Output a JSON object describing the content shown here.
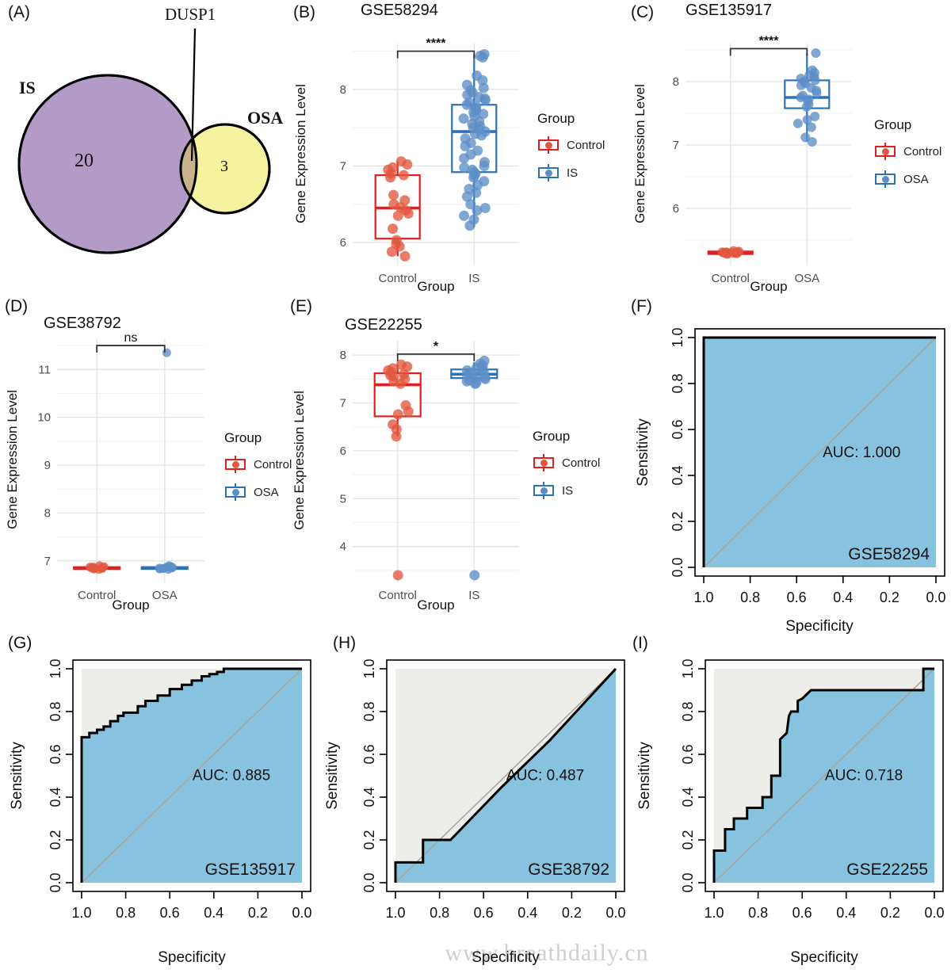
{
  "watermark": "www.breathdaily.cn",
  "colors": {
    "red_stroke": "#E02020",
    "red_point": "#E2573F",
    "blue_stroke": "#2C72B4",
    "blue_point": "#5C8EC6",
    "grid_major": "#E3E3E3",
    "grid_minor": "#F2F2F2",
    "axis_text": "#4D4D4D",
    "sig": "#333333",
    "roc_fill": "#87C3DF",
    "roc_area_bg": "#EDEDEA",
    "diagonal": "#AAA29A",
    "venn_is": "#B29BC6",
    "venn_osa": "#F5F3A0",
    "venn_overlap": "#C8B38C"
  },
  "chart_data": [
    {
      "id": "A",
      "type": "venn",
      "label": "(A)",
      "gene_label": "DUSP1",
      "sets": [
        {
          "name": "IS",
          "count": "20"
        },
        {
          "name": "OSA",
          "count": "3"
        }
      ],
      "overlap_gene": "DUSP1"
    },
    {
      "id": "B",
      "type": "box",
      "label": "(B)",
      "title": "GSE58294",
      "sig": "****",
      "sig_y": 8.5,
      "ylabel": "Gene Expression Level",
      "xlabel": "Group",
      "ylim": [
        5.7,
        8.6
      ],
      "yticks": [
        6,
        7,
        8
      ],
      "legend": {
        "title": "Group",
        "items": [
          {
            "label": "Control",
            "color": "red"
          },
          {
            "label": "IS",
            "color": "blue"
          }
        ]
      },
      "groups": [
        {
          "name": "Control",
          "color": "red",
          "box": {
            "lo": 5.82,
            "q1": 6.05,
            "med": 6.45,
            "q3": 6.88,
            "hi": 7.06
          },
          "points": [
            7.06,
            7.02,
            6.98,
            6.95,
            6.9,
            6.88,
            6.85,
            6.62,
            6.55,
            6.5,
            6.46,
            6.42,
            6.38,
            6.35,
            6.18,
            6.03,
            5.98,
            5.95,
            5.88,
            5.82
          ]
        },
        {
          "name": "IS",
          "color": "blue",
          "box": {
            "lo": 6.2,
            "q1": 6.92,
            "med": 7.45,
            "q3": 7.8,
            "hi": 8.45
          },
          "points": [
            8.46,
            8.44,
            8.42,
            8.18,
            8.12,
            8.06,
            8.02,
            7.99,
            7.96,
            7.93,
            7.9,
            7.88,
            7.86,
            7.83,
            7.8,
            7.78,
            7.76,
            7.73,
            7.7,
            7.68,
            7.65,
            7.62,
            7.58,
            7.55,
            7.52,
            7.5,
            7.48,
            7.45,
            7.42,
            7.4,
            7.36,
            7.3,
            7.26,
            7.2,
            7.15,
            7.1,
            7.05,
            7.0,
            6.98,
            6.95,
            6.92,
            6.9,
            6.88,
            6.85,
            6.8,
            6.75,
            6.7,
            6.65,
            6.6,
            6.5,
            6.45,
            6.42,
            6.35,
            6.3,
            6.22
          ]
        }
      ]
    },
    {
      "id": "C",
      "type": "box",
      "label": "(C)",
      "title": "GSE135917",
      "sig": "****",
      "sig_y": 8.52,
      "ylabel": "Gene Expression Level",
      "xlabel": "Group",
      "ylim": [
        5.1,
        8.6
      ],
      "yticks": [
        6,
        7,
        8
      ],
      "legend": {
        "title": "Group",
        "items": [
          {
            "label": "Control",
            "color": "red"
          },
          {
            "label": "OSA",
            "color": "blue"
          }
        ]
      },
      "groups": [
        {
          "name": "Control",
          "color": "red",
          "box": {
            "lo": 5.25,
            "q1": 5.28,
            "med": 5.3,
            "q3": 5.32,
            "hi": 5.35
          },
          "points": [
            5.33,
            5.32,
            5.31,
            5.31,
            5.3,
            5.3,
            5.3,
            5.29,
            5.29,
            5.28,
            5.3,
            5.31
          ]
        },
        {
          "name": "OSA",
          "color": "blue",
          "box": {
            "lo": 7.05,
            "q1": 7.58,
            "med": 7.75,
            "q3": 8.02,
            "hi": 8.45
          },
          "points": [
            8.45,
            8.18,
            8.14,
            8.1,
            8.08,
            8.05,
            8.02,
            8.0,
            7.97,
            7.94,
            7.9,
            7.86,
            7.82,
            7.78,
            7.75,
            7.72,
            7.68,
            7.64,
            7.6,
            7.45,
            7.4,
            7.34,
            7.28,
            7.12,
            7.05
          ]
        }
      ]
    },
    {
      "id": "D",
      "type": "box",
      "label": "(D)",
      "title": "GSE38792",
      "sig": "ns",
      "sig_y": 11.5,
      "ylabel": "Gene Expression Level",
      "xlabel": "Group",
      "ylim": [
        6.55,
        11.65
      ],
      "yticks": [
        7,
        8,
        9,
        10,
        11
      ],
      "legend": {
        "title": "Group",
        "items": [
          {
            "label": "Control",
            "color": "red"
          },
          {
            "label": "OSA",
            "color": "blue"
          }
        ]
      },
      "groups": [
        {
          "name": "Control",
          "color": "red",
          "box": {
            "lo": 6.8,
            "q1": 6.83,
            "med": 6.85,
            "q3": 6.87,
            "hi": 6.9
          },
          "points": [
            6.9,
            6.88,
            6.87,
            6.87,
            6.86,
            6.85,
            6.85,
            6.84,
            6.84,
            6.83,
            6.82,
            6.86
          ]
        },
        {
          "name": "OSA",
          "color": "blue",
          "box": {
            "lo": 6.8,
            "q1": 6.83,
            "med": 6.85,
            "q3": 6.87,
            "hi": 6.9
          },
          "points": [
            11.35,
            6.9,
            6.88,
            6.87,
            6.86,
            6.85,
            6.85,
            6.84,
            6.84,
            6.83,
            6.82,
            6.86
          ]
        }
      ]
    },
    {
      "id": "E",
      "type": "box",
      "label": "(E)",
      "title": "GSE22255",
      "sig": "*",
      "sig_y": 8.02,
      "ylabel": "Gene Expression Level",
      "xlabel": "Group",
      "ylim": [
        3.25,
        8.3
      ],
      "yticks": [
        4,
        5,
        6,
        7,
        8
      ],
      "legend": {
        "title": "Group",
        "items": [
          {
            "label": "Control",
            "color": "red"
          },
          {
            "label": "IS",
            "color": "blue"
          }
        ]
      },
      "groups": [
        {
          "name": "Control",
          "color": "red",
          "box": {
            "lo": 6.3,
            "q1": 6.72,
            "med": 7.38,
            "q3": 7.62,
            "hi": 7.8
          },
          "points": [
            7.8,
            7.76,
            7.72,
            7.68,
            7.64,
            7.6,
            7.58,
            7.55,
            7.5,
            7.45,
            7.4,
            6.95,
            6.82,
            6.76,
            6.55,
            6.45,
            6.3,
            3.4
          ]
        },
        {
          "name": "IS",
          "color": "blue",
          "box": {
            "lo": 7.4,
            "q1": 7.52,
            "med": 7.6,
            "q3": 7.7,
            "hi": 7.85
          },
          "points": [
            7.88,
            7.82,
            7.78,
            7.74,
            7.7,
            7.68,
            7.66,
            7.63,
            7.6,
            7.58,
            7.56,
            7.53,
            7.5,
            7.48,
            7.45,
            7.42,
            7.4,
            3.4
          ]
        }
      ]
    },
    {
      "id": "F",
      "type": "roc",
      "label": "(F)",
      "dataset": "GSE58294",
      "auc_label": "AUC: 1.000",
      "auc": 1.0,
      "xlabel": "Specificity",
      "ylabel": "Sensitivity",
      "xticks": [
        "1.0",
        "0.8",
        "0.6",
        "0.4",
        "0.2",
        "0.0"
      ],
      "yticks": [
        "0.0",
        "0.2",
        "0.4",
        "0.6",
        "0.8",
        "1.0"
      ],
      "curve": [
        [
          1,
          0
        ],
        [
          1,
          1
        ],
        [
          0,
          1
        ]
      ]
    },
    {
      "id": "G",
      "type": "roc",
      "label": "(G)",
      "dataset": "GSE135917",
      "auc_label": "AUC: 0.885",
      "auc": 0.885,
      "xlabel": "Specificity",
      "ylabel": "Sensitivity",
      "xticks": [
        "1.0",
        "0.8",
        "0.6",
        "0.4",
        "0.2",
        "0.0"
      ],
      "yticks": [
        "0.0",
        "0.2",
        "0.4",
        "0.6",
        "0.8",
        "1.0"
      ],
      "curve": [
        [
          1,
          0
        ],
        [
          1,
          0.68
        ],
        [
          0.965,
          0.68
        ],
        [
          0.965,
          0.7
        ],
        [
          0.93,
          0.7
        ],
        [
          0.93,
          0.715
        ],
        [
          0.9,
          0.715
        ],
        [
          0.9,
          0.73
        ],
        [
          0.87,
          0.73
        ],
        [
          0.87,
          0.755
        ],
        [
          0.835,
          0.755
        ],
        [
          0.835,
          0.78
        ],
        [
          0.81,
          0.78
        ],
        [
          0.81,
          0.795
        ],
        [
          0.745,
          0.795
        ],
        [
          0.745,
          0.825
        ],
        [
          0.71,
          0.825
        ],
        [
          0.71,
          0.85
        ],
        [
          0.655,
          0.85
        ],
        [
          0.655,
          0.875
        ],
        [
          0.6,
          0.875
        ],
        [
          0.6,
          0.905
        ],
        [
          0.545,
          0.905
        ],
        [
          0.545,
          0.925
        ],
        [
          0.5,
          0.925
        ],
        [
          0.5,
          0.945
        ],
        [
          0.455,
          0.945
        ],
        [
          0.455,
          0.965
        ],
        [
          0.42,
          0.965
        ],
        [
          0.42,
          0.975
        ],
        [
          0.385,
          0.975
        ],
        [
          0.385,
          0.985
        ],
        [
          0.355,
          0.985
        ],
        [
          0.355,
          1
        ],
        [
          0,
          1
        ]
      ]
    },
    {
      "id": "H",
      "type": "roc",
      "label": "(H)",
      "dataset": "GSE38792",
      "auc_label": "AUC: 0.487",
      "auc": 0.487,
      "xlabel": "Specificity",
      "ylabel": "Sensitivity",
      "xticks": [
        "1.0",
        "0.8",
        "0.6",
        "0.4",
        "0.2",
        "0.0"
      ],
      "yticks": [
        "0.0",
        "0.2",
        "0.4",
        "0.6",
        "0.8",
        "1.0"
      ],
      "curve": [
        [
          1,
          0
        ],
        [
          1,
          0.095
        ],
        [
          0.875,
          0.095
        ],
        [
          0.875,
          0.2
        ],
        [
          0.75,
          0.2
        ],
        [
          0.52,
          0.445
        ],
        [
          0.3,
          0.665
        ],
        [
          0,
          1
        ]
      ]
    },
    {
      "id": "I",
      "type": "roc",
      "label": "(I)",
      "dataset": "GSE22255",
      "auc_label": "AUC: 0.718",
      "auc": 0.718,
      "xlabel": "Specificity",
      "ylabel": "Sensitivity",
      "xticks": [
        "1.0",
        "0.8",
        "0.6",
        "0.4",
        "0.2",
        "0.0"
      ],
      "yticks": [
        "0.0",
        "0.2",
        "0.4",
        "0.6",
        "0.8",
        "1.0"
      ],
      "curve": [
        [
          1,
          0
        ],
        [
          1,
          0.15
        ],
        [
          0.95,
          0.15
        ],
        [
          0.95,
          0.25
        ],
        [
          0.91,
          0.25
        ],
        [
          0.91,
          0.3
        ],
        [
          0.85,
          0.3
        ],
        [
          0.85,
          0.35
        ],
        [
          0.78,
          0.35
        ],
        [
          0.78,
          0.4
        ],
        [
          0.74,
          0.4
        ],
        [
          0.74,
          0.5
        ],
        [
          0.7,
          0.5
        ],
        [
          0.7,
          0.67
        ],
        [
          0.67,
          0.7
        ],
        [
          0.66,
          0.78
        ],
        [
          0.65,
          0.8
        ],
        [
          0.62,
          0.8
        ],
        [
          0.62,
          0.85
        ],
        [
          0.6,
          0.86
        ],
        [
          0.56,
          0.9
        ],
        [
          0.05,
          0.9
        ],
        [
          0.05,
          1
        ],
        [
          0,
          1
        ]
      ]
    }
  ]
}
